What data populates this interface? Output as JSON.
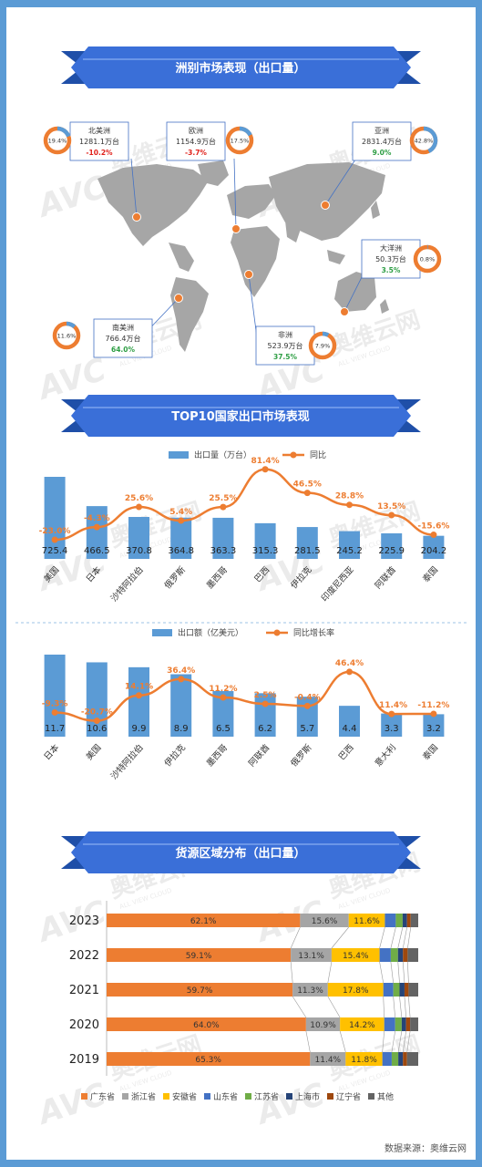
{
  "colors": {
    "banner": "#3a6fd8",
    "banner_dark": "#1f4fa8",
    "bar_blue": "#5b9bd5",
    "line_orange": "#ed7d31",
    "gray": "#a5a5a5",
    "yellow": "#ffc000",
    "navy": "#4472c4",
    "green": "#70ad47",
    "dark_blue": "#264478",
    "brown": "#9e480e",
    "dark_gray": "#636363",
    "map": "#a6a6a6",
    "positive": "#2e9e44",
    "negative": "#e0201a"
  },
  "section_titles": {
    "continents": "洲别市场表现（出口量）",
    "top10": "TOP10国家出口市场表现",
    "regions": "货源区域分布（出口量）"
  },
  "watermark": {
    "brand": "AVC",
    "cn": "奥维云网",
    "en": "ALL VIEW CLOUD"
  },
  "continents": [
    {
      "name": "北美洲",
      "volume": "1281.1万台",
      "growth": "-10.2%",
      "share_label": "19.4%",
      "share": 0.194
    },
    {
      "name": "欧洲",
      "volume": "1154.9万台",
      "growth": "-3.7%",
      "share_label": "17.5%",
      "share": 0.175
    },
    {
      "name": "亚洲",
      "volume": "2831.4万台",
      "growth": "9.0%",
      "share_label": "42.8%",
      "share": 0.428
    },
    {
      "name": "大洋洲",
      "volume": "50.3万台",
      "growth": "3.5%",
      "share_label": "0.8%",
      "share": 0.008
    },
    {
      "name": "南美洲",
      "volume": "766.4万台",
      "growth": "64.0%",
      "share_label": "11.6%",
      "share": 0.116
    },
    {
      "name": "非洲",
      "volume": "523.9万台",
      "growth": "37.5%",
      "share_label": "7.9%",
      "share": 0.079
    }
  ],
  "chart_data": [
    {
      "type": "bar",
      "legend": [
        "出口量（万台）",
        "同比"
      ],
      "categories": [
        "美国",
        "日本",
        "沙特阿拉伯",
        "俄罗斯",
        "墨西哥",
        "巴西",
        "伊拉克",
        "印度尼西亚",
        "阿联酋",
        "泰国"
      ],
      "series": [
        {
          "name": "出口量（万台）",
          "values": [
            725.4,
            466.5,
            370.8,
            364.8,
            363.3,
            315.3,
            281.5,
            245.2,
            225.9,
            204.2
          ],
          "labels": [
            "725.4",
            "466.5",
            "370.8",
            "364.8",
            "363.3",
            "315.3",
            "281.5",
            "245.2",
            "225.9",
            "204.2"
          ]
        },
        {
          "name": "同比",
          "values": [
            -23.0,
            -4.3,
            25.6,
            5.4,
            25.5,
            81.4,
            46.5,
            28.8,
            13.5,
            -15.6
          ],
          "labels": [
            "-23.0%",
            "-4.3%",
            "25.6%",
            "5.4%",
            "25.5%",
            "81.4%",
            "46.5%",
            "28.8%",
            "13.5%",
            "-15.6%"
          ]
        }
      ]
    },
    {
      "type": "bar",
      "legend": [
        "出口额（亿美元）",
        "同比增长率"
      ],
      "categories": [
        "日本",
        "美国",
        "沙特阿拉伯",
        "伊拉克",
        "墨西哥",
        "阿联酋",
        "俄罗斯",
        "巴西",
        "意大利",
        "泰国"
      ],
      "series": [
        {
          "name": "出口额（亿美元）",
          "values": [
            11.7,
            10.6,
            9.9,
            8.9,
            6.5,
            6.2,
            5.7,
            4.4,
            3.3,
            3.2
          ],
          "labels": [
            "11.7",
            "10.6",
            "9.9",
            "8.9",
            "6.5",
            "6.2",
            "5.7",
            "4.4",
            "3.3",
            "3.2"
          ]
        },
        {
          "name": "同比增长率",
          "values": [
            -9.3,
            -20.7,
            14.1,
            36.4,
            11.2,
            2.5,
            -0.4,
            46.4,
            -11.4,
            -11.2
          ],
          "labels": [
            "-9.3%",
            "-20.7%",
            "14.1%",
            "36.4%",
            "11.2%",
            "2.5%",
            "-0.4%",
            "46.4%",
            "-11.4%",
            "-11.2%"
          ]
        }
      ]
    },
    {
      "type": "bar",
      "stacked": true,
      "orientation": "horizontal",
      "categories": [
        "2023",
        "2022",
        "2021",
        "2020",
        "2019"
      ],
      "legend": [
        "广东省",
        "浙江省",
        "安徽省",
        "山东省",
        "江苏省",
        "上海市",
        "辽宁省",
        "其他"
      ],
      "series": [
        {
          "name": "广东省",
          "values": [
            62.1,
            59.1,
            59.7,
            64.0,
            65.3
          ],
          "labels": [
            "62.1%",
            "59.1%",
            "59.7%",
            "64.0%",
            "65.3%"
          ]
        },
        {
          "name": "浙江省",
          "values": [
            15.6,
            13.1,
            11.3,
            10.9,
            11.4
          ],
          "labels": [
            "15.6%",
            "13.1%",
            "11.3%",
            "10.9%",
            "11.4%"
          ]
        },
        {
          "name": "安徽省",
          "values": [
            11.6,
            15.4,
            17.8,
            14.2,
            11.8
          ],
          "labels": [
            "11.6%",
            "15.4%",
            "17.8%",
            "14.2%",
            "11.8%"
          ]
        },
        {
          "name": "山东省",
          "values": [
            3.5,
            3.6,
            3.2,
            3.5,
            3.0
          ]
        },
        {
          "name": "江苏省",
          "values": [
            2.2,
            2.3,
            2.0,
            2.1,
            2.1
          ]
        },
        {
          "name": "上海市",
          "values": [
            1.4,
            1.6,
            1.6,
            1.4,
            1.5
          ]
        },
        {
          "name": "辽宁省",
          "values": [
            1.2,
            1.5,
            1.3,
            1.3,
            1.3
          ]
        },
        {
          "name": "其他",
          "values": [
            2.4,
            3.4,
            3.1,
            2.6,
            3.6
          ]
        }
      ]
    }
  ],
  "footer": "数据来源：奥维云网"
}
